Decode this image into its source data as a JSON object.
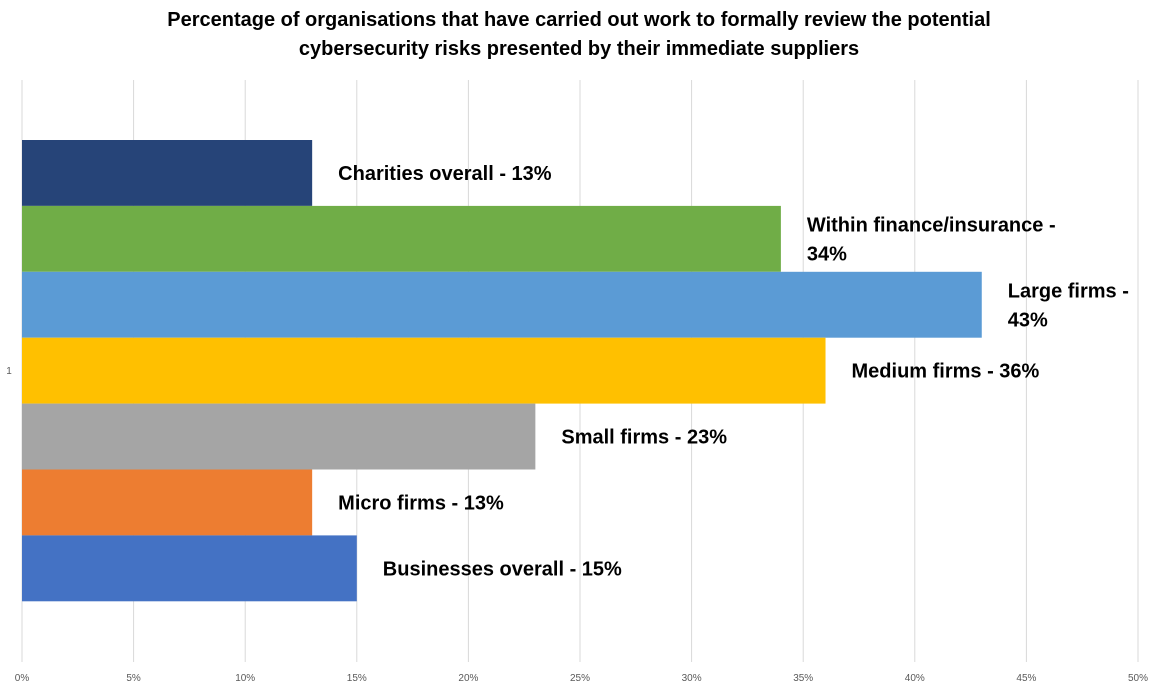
{
  "chart_data": {
    "type": "bar",
    "orientation": "horizontal",
    "title_lines": [
      "Percentage of organisations that have carried out work to formally review the potential",
      "cybersecurity risks presented by their immediate suppliers"
    ],
    "category_label": "1",
    "xlim": [
      0,
      50
    ],
    "xticks": [
      "0%",
      "5%",
      "10%",
      "15%",
      "20%",
      "25%",
      "30%",
      "35%",
      "40%",
      "45%",
      "50%"
    ],
    "grid": "vertical",
    "series": [
      {
        "name": "Charities overall",
        "value": 13,
        "color": "#264478",
        "label_lines": [
          "Charities overall - 13%"
        ]
      },
      {
        "name": "Within finance/insurance",
        "value": 34,
        "color": "#70AD47",
        "label_lines": [
          "Within finance/insurance -",
          "34%"
        ]
      },
      {
        "name": "Large firms",
        "value": 43,
        "color": "#5B9BD5",
        "label_lines": [
          "Large firms -",
          "43%"
        ]
      },
      {
        "name": "Medium firms",
        "value": 36,
        "color": "#FFC000",
        "label_lines": [
          "Medium firms - 36%"
        ]
      },
      {
        "name": "Small firms",
        "value": 23,
        "color": "#A5A5A5",
        "label_lines": [
          "Small firms - 23%"
        ]
      },
      {
        "name": "Micro firms",
        "value": 13,
        "color": "#ED7D31",
        "label_lines": [
          "Micro firms - 13%"
        ]
      },
      {
        "name": "Businesses overall",
        "value": 15,
        "color": "#4472C4",
        "label_lines": [
          "Businesses overall - 15%"
        ]
      }
    ]
  }
}
